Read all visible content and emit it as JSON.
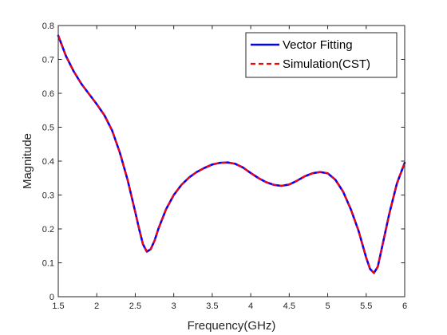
{
  "chart_data": {
    "type": "line",
    "title": "",
    "xlabel": "Frequency(GHz)",
    "ylabel": "Magnitude",
    "xlim": [
      1.5,
      6
    ],
    "ylim": [
      0,
      0.8
    ],
    "xticks": [
      "1.5",
      "2",
      "2.5",
      "3",
      "3.5",
      "4",
      "4.5",
      "5",
      "5.5",
      "6"
    ],
    "yticks": [
      "0",
      "0.1",
      "0.2",
      "0.3",
      "0.4",
      "0.5",
      "0.6",
      "0.7",
      "0.8"
    ],
    "grid": false,
    "legend_position": "top-right",
    "series": [
      {
        "name": "Vector Fitting",
        "color": "#0000ff",
        "style": "solid",
        "x": [
          1.5,
          1.6,
          1.7,
          1.8,
          1.9,
          2.0,
          2.1,
          2.2,
          2.3,
          2.4,
          2.5,
          2.55,
          2.6,
          2.65,
          2.7,
          2.75,
          2.8,
          2.9,
          3.0,
          3.1,
          3.2,
          3.3,
          3.4,
          3.5,
          3.6,
          3.7,
          3.8,
          3.9,
          4.0,
          4.1,
          4.2,
          4.3,
          4.4,
          4.5,
          4.6,
          4.7,
          4.8,
          4.9,
          5.0,
          5.1,
          5.2,
          5.3,
          5.4,
          5.5,
          5.55,
          5.6,
          5.65,
          5.7,
          5.8,
          5.9,
          6.0
        ],
        "y": [
          0.77,
          0.71,
          0.665,
          0.628,
          0.598,
          0.568,
          0.535,
          0.49,
          0.425,
          0.345,
          0.25,
          0.2,
          0.155,
          0.133,
          0.14,
          0.165,
          0.2,
          0.258,
          0.3,
          0.33,
          0.352,
          0.368,
          0.38,
          0.39,
          0.395,
          0.396,
          0.392,
          0.381,
          0.365,
          0.35,
          0.338,
          0.33,
          0.327,
          0.331,
          0.342,
          0.355,
          0.364,
          0.368,
          0.364,
          0.345,
          0.31,
          0.258,
          0.195,
          0.115,
          0.082,
          0.07,
          0.088,
          0.14,
          0.245,
          0.335,
          0.395
        ]
      },
      {
        "name": "Simulation(CST)",
        "color": "#ff0000",
        "style": "dashed",
        "x": [
          1.5,
          1.6,
          1.7,
          1.8,
          1.9,
          2.0,
          2.1,
          2.2,
          2.3,
          2.4,
          2.5,
          2.55,
          2.6,
          2.65,
          2.7,
          2.75,
          2.8,
          2.9,
          3.0,
          3.1,
          3.2,
          3.3,
          3.4,
          3.5,
          3.6,
          3.7,
          3.8,
          3.9,
          4.0,
          4.1,
          4.2,
          4.3,
          4.4,
          4.5,
          4.6,
          4.7,
          4.8,
          4.9,
          5.0,
          5.1,
          5.2,
          5.3,
          5.4,
          5.5,
          5.55,
          5.6,
          5.65,
          5.7,
          5.8,
          5.9,
          6.0
        ],
        "y": [
          0.77,
          0.71,
          0.665,
          0.628,
          0.598,
          0.568,
          0.535,
          0.49,
          0.425,
          0.345,
          0.25,
          0.2,
          0.155,
          0.133,
          0.14,
          0.165,
          0.2,
          0.258,
          0.3,
          0.33,
          0.352,
          0.368,
          0.38,
          0.39,
          0.395,
          0.396,
          0.392,
          0.381,
          0.365,
          0.35,
          0.338,
          0.33,
          0.327,
          0.331,
          0.342,
          0.355,
          0.364,
          0.368,
          0.364,
          0.345,
          0.31,
          0.258,
          0.195,
          0.115,
          0.082,
          0.07,
          0.088,
          0.14,
          0.245,
          0.335,
          0.395
        ]
      }
    ]
  }
}
